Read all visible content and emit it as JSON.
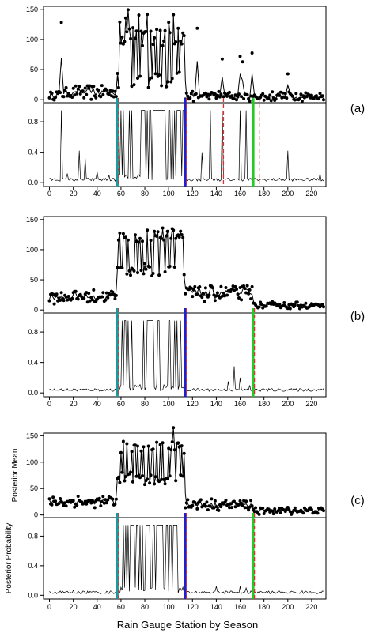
{
  "figure": {
    "panel_labels": [
      "(a)",
      "(b)",
      "(c)"
    ],
    "xlabel": "Rain Gauge Station by Season",
    "ylabel_mean": "Posterior Mean",
    "ylabel_prob": "Posterior Probability"
  },
  "chart_data": {
    "type": "line",
    "x_ticks": [
      0,
      20,
      40,
      60,
      80,
      100,
      120,
      140,
      160,
      180,
      200,
      220
    ],
    "xlim": [
      -5,
      232
    ],
    "mean_ylim": [
      -5,
      155
    ],
    "mean_ticks": [
      0,
      50,
      100,
      150
    ],
    "prob_ylim": [
      -0.05,
      1.05
    ],
    "prob_ticks": [
      0.0,
      0.4,
      0.8
    ],
    "colors": {
      "points": "#000000",
      "line": "#000000",
      "teal": "#1a9a9a",
      "blue": "#1f1fd0",
      "green": "#22cc22",
      "red_dash": "#e03030"
    },
    "panels": [
      {
        "label": "(a)",
        "mean_segments": [
          {
            "x0": 0,
            "x1": 10,
            "base": 8,
            "noise": 6
          },
          {
            "x0": 10,
            "x1": 11,
            "base": 130,
            "noise": 0
          },
          {
            "x0": 11,
            "x1": 57,
            "base": 12,
            "noise": 10
          },
          {
            "x0": 57,
            "x1": 114,
            "base": 70,
            "noise": 50,
            "spiky": true
          },
          {
            "x0": 114,
            "x1": 230,
            "base": 6,
            "noise": 6
          }
        ],
        "mean_spikes": [
          [
            10,
            130
          ],
          [
            59,
            130
          ],
          [
            64,
            135
          ],
          [
            66,
            150
          ],
          [
            70,
            120
          ],
          [
            75,
            140
          ],
          [
            82,
            140
          ],
          [
            88,
            105
          ],
          [
            95,
            90
          ],
          [
            100,
            130
          ],
          [
            104,
            140
          ],
          [
            108,
            120
          ],
          [
            124,
            120
          ],
          [
            145,
            70
          ],
          [
            160,
            75
          ],
          [
            162,
            60
          ],
          [
            170,
            80
          ],
          [
            200,
            40
          ]
        ],
        "prob_spikes": [
          [
            10,
            0.95
          ],
          [
            15,
            0.12
          ],
          [
            25,
            0.42
          ],
          [
            30,
            0.32
          ],
          [
            40,
            0.14
          ],
          [
            50,
            0.1
          ],
          [
            128,
            0.4
          ],
          [
            135,
            0.95
          ],
          [
            145,
            0.95
          ],
          [
            160,
            0.95
          ],
          [
            165,
            0.95
          ],
          [
            200,
            0.42
          ],
          [
            227,
            0.12
          ]
        ],
        "prob_high_zone": [
          57,
          114
        ],
        "vlines": [
          {
            "x": 57,
            "color": "teal",
            "dashed": false
          },
          {
            "x": 58,
            "color": "red_dash",
            "dashed": true
          },
          {
            "x": 114,
            "color": "blue",
            "dashed": false
          },
          {
            "x": 115,
            "color": "red_dash",
            "dashed": true
          },
          {
            "x": 146,
            "color": "red_dash",
            "dashed": true
          },
          {
            "x": 171,
            "color": "green",
            "dashed": false
          },
          {
            "x": 176,
            "color": "red_dash",
            "dashed": true
          }
        ]
      },
      {
        "label": "(b)",
        "mean_segments": [
          {
            "x0": 0,
            "x1": 57,
            "base": 22,
            "noise": 10
          },
          {
            "x0": 57,
            "x1": 114,
            "base": 95,
            "noise": 40,
            "spiky": true
          },
          {
            "x0": 114,
            "x1": 171,
            "base": 28,
            "noise": 12
          },
          {
            "x0": 171,
            "x1": 230,
            "base": 8,
            "noise": 4
          }
        ],
        "mean_spikes": [],
        "prob_spikes": [
          [
            150,
            0.15
          ],
          [
            155,
            0.35
          ],
          [
            160,
            0.2
          ],
          [
            168,
            0.1
          ]
        ],
        "prob_high_zone": [
          59,
          113
        ],
        "vlines": [
          {
            "x": 57,
            "color": "teal",
            "dashed": false
          },
          {
            "x": 58,
            "color": "red_dash",
            "dashed": true
          },
          {
            "x": 114,
            "color": "blue",
            "dashed": false
          },
          {
            "x": 115,
            "color": "red_dash",
            "dashed": true
          },
          {
            "x": 171,
            "color": "green",
            "dashed": false
          },
          {
            "x": 172,
            "color": "red_dash",
            "dashed": true
          }
        ]
      },
      {
        "label": "(c)",
        "mean_segments": [
          {
            "x0": 0,
            "x1": 57,
            "base": 25,
            "noise": 10
          },
          {
            "x0": 57,
            "x1": 114,
            "base": 100,
            "noise": 40,
            "spiky": true
          },
          {
            "x0": 114,
            "x1": 171,
            "base": 20,
            "noise": 10
          },
          {
            "x0": 171,
            "x1": 230,
            "base": 8,
            "noise": 5
          }
        ],
        "mean_spikes": [
          [
            104,
            165
          ]
        ],
        "prob_spikes": [
          [
            20,
            0.07
          ],
          [
            140,
            0.12
          ],
          [
            160,
            0.12
          ],
          [
            165,
            0.1
          ]
        ],
        "prob_high_zone": [
          59,
          113
        ],
        "vlines": [
          {
            "x": 57,
            "color": "teal",
            "dashed": false
          },
          {
            "x": 58,
            "color": "red_dash",
            "dashed": true
          },
          {
            "x": 114,
            "color": "blue",
            "dashed": false
          },
          {
            "x": 115,
            "color": "red_dash",
            "dashed": true
          },
          {
            "x": 171,
            "color": "green",
            "dashed": false
          },
          {
            "x": 172,
            "color": "red_dash",
            "dashed": true
          }
        ]
      }
    ]
  }
}
